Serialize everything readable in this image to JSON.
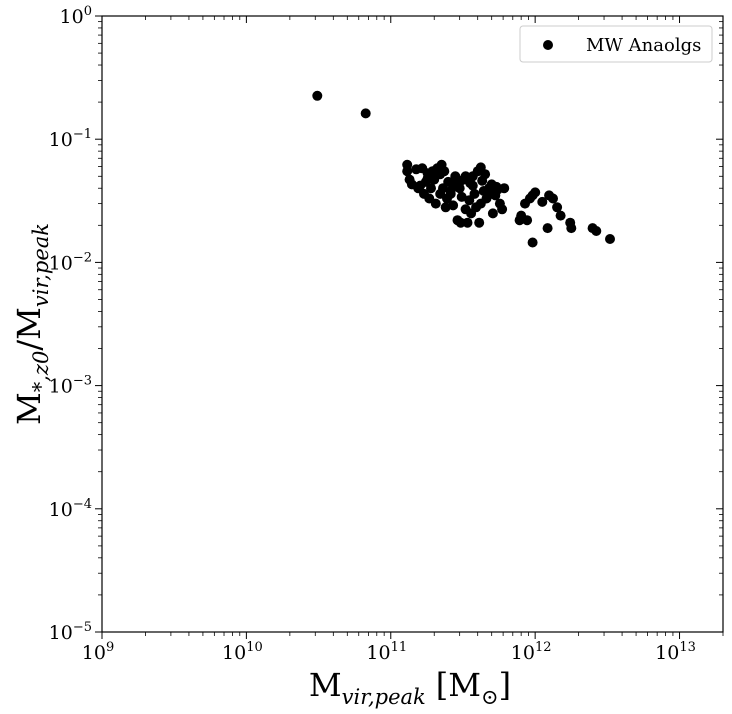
{
  "chart_data": {
    "type": "scatter",
    "xscale": "log",
    "yscale": "log",
    "xlim": [
      1000000000.0,
      20000000000000.0
    ],
    "ylim": [
      1e-05,
      1
    ],
    "grid": false,
    "legend_placement": "top-right",
    "xlabel": {
      "base": "M",
      "sub": "vir,peak",
      "unit": "[M",
      "unit_sub": "⊙",
      "unit_close": "]"
    },
    "ylabel": {
      "base": "M",
      "sub1": "*,z0",
      "slash": "/M",
      "sub2": "vir,peak"
    },
    "xticks": [
      {
        "base": "10",
        "exp": "9"
      },
      {
        "base": "10",
        "exp": "10"
      },
      {
        "base": "10",
        "exp": "11"
      },
      {
        "base": "10",
        "exp": "12"
      },
      {
        "base": "10",
        "exp": "13"
      }
    ],
    "yticks": [
      {
        "base": "10",
        "exp": "0"
      },
      {
        "base": "10",
        "exp": "−1"
      },
      {
        "base": "10",
        "exp": "−2"
      },
      {
        "base": "10",
        "exp": "−3"
      },
      {
        "base": "10",
        "exp": "−4"
      },
      {
        "base": "10",
        "exp": "−5"
      }
    ],
    "series": [
      {
        "name": "MW Anaolgs",
        "color": "#000000",
        "marker": "circle",
        "x": [
          31000000000.0,
          67000000000.0,
          130000000000.0,
          130000000000.0,
          135000000000.0,
          140000000000.0,
          150000000000.0,
          155000000000.0,
          165000000000.0,
          170000000000.0,
          175000000000.0,
          180000000000.0,
          185000000000.0,
          190000000000.0,
          195000000000.0,
          200000000000.0,
          205000000000.0,
          210000000000.0,
          220000000000.0,
          225000000000.0,
          230000000000.0,
          235000000000.0,
          240000000000.0,
          245000000000.0,
          250000000000.0,
          260000000000.0,
          270000000000.0,
          275000000000.0,
          280000000000.0,
          290000000000.0,
          300000000000.0,
          305000000000.0,
          310000000000.0,
          320000000000.0,
          330000000000.0,
          340000000000.0,
          350000000000.0,
          355000000000.0,
          360000000000.0,
          370000000000.0,
          380000000000.0,
          390000000000.0,
          400000000000.0,
          410000000000.0,
          420000000000.0,
          430000000000.0,
          440000000000.0,
          450000000000.0,
          460000000000.0,
          480000000000.0,
          500000000000.0,
          510000000000.0,
          530000000000.0,
          550000000000.0,
          570000000000.0,
          590000000000.0,
          610000000000.0,
          160000000000.0,
          180000000000.0,
          220000000000.0,
          260000000000.0,
          300000000000.0,
          330000000000.0,
          370000000000.0,
          420000000000.0,
          490000000000.0,
          540000000000.0,
          780000000000.0,
          800000000000.0,
          850000000000.0,
          880000000000.0,
          920000000000.0,
          960000000000.0,
          1000000000000.0,
          1120000000000.0,
          1220000000000.0,
          1250000000000.0,
          1330000000000.0,
          1420000000000.0,
          1500000000000.0,
          1750000000000.0,
          1780000000000.0,
          2500000000000.0,
          2650000000000.0,
          3300000000000.0,
          960000000000.0
        ],
        "y": [
          0.225,
          0.162,
          0.062,
          0.055,
          0.047,
          0.043,
          0.057,
          0.04,
          0.058,
          0.036,
          0.045,
          0.053,
          0.033,
          0.04,
          0.055,
          0.047,
          0.03,
          0.058,
          0.036,
          0.062,
          0.04,
          0.055,
          0.028,
          0.033,
          0.045,
          0.036,
          0.029,
          0.043,
          0.05,
          0.022,
          0.04,
          0.021,
          0.034,
          0.047,
          0.027,
          0.021,
          0.032,
          0.044,
          0.025,
          0.05,
          0.036,
          0.028,
          0.055,
          0.021,
          0.059,
          0.046,
          0.038,
          0.052,
          0.033,
          0.04,
          0.043,
          0.025,
          0.035,
          0.039,
          0.03,
          0.027,
          0.04,
          0.042,
          0.048,
          0.052,
          0.038,
          0.045,
          0.05,
          0.042,
          0.03,
          0.036,
          0.041,
          0.022,
          0.024,
          0.03,
          0.022,
          0.033,
          0.035,
          0.037,
          0.031,
          0.019,
          0.035,
          0.033,
          0.028,
          0.024,
          0.021,
          0.019,
          0.019,
          0.018,
          0.0155,
          0.0145
        ]
      }
    ]
  }
}
